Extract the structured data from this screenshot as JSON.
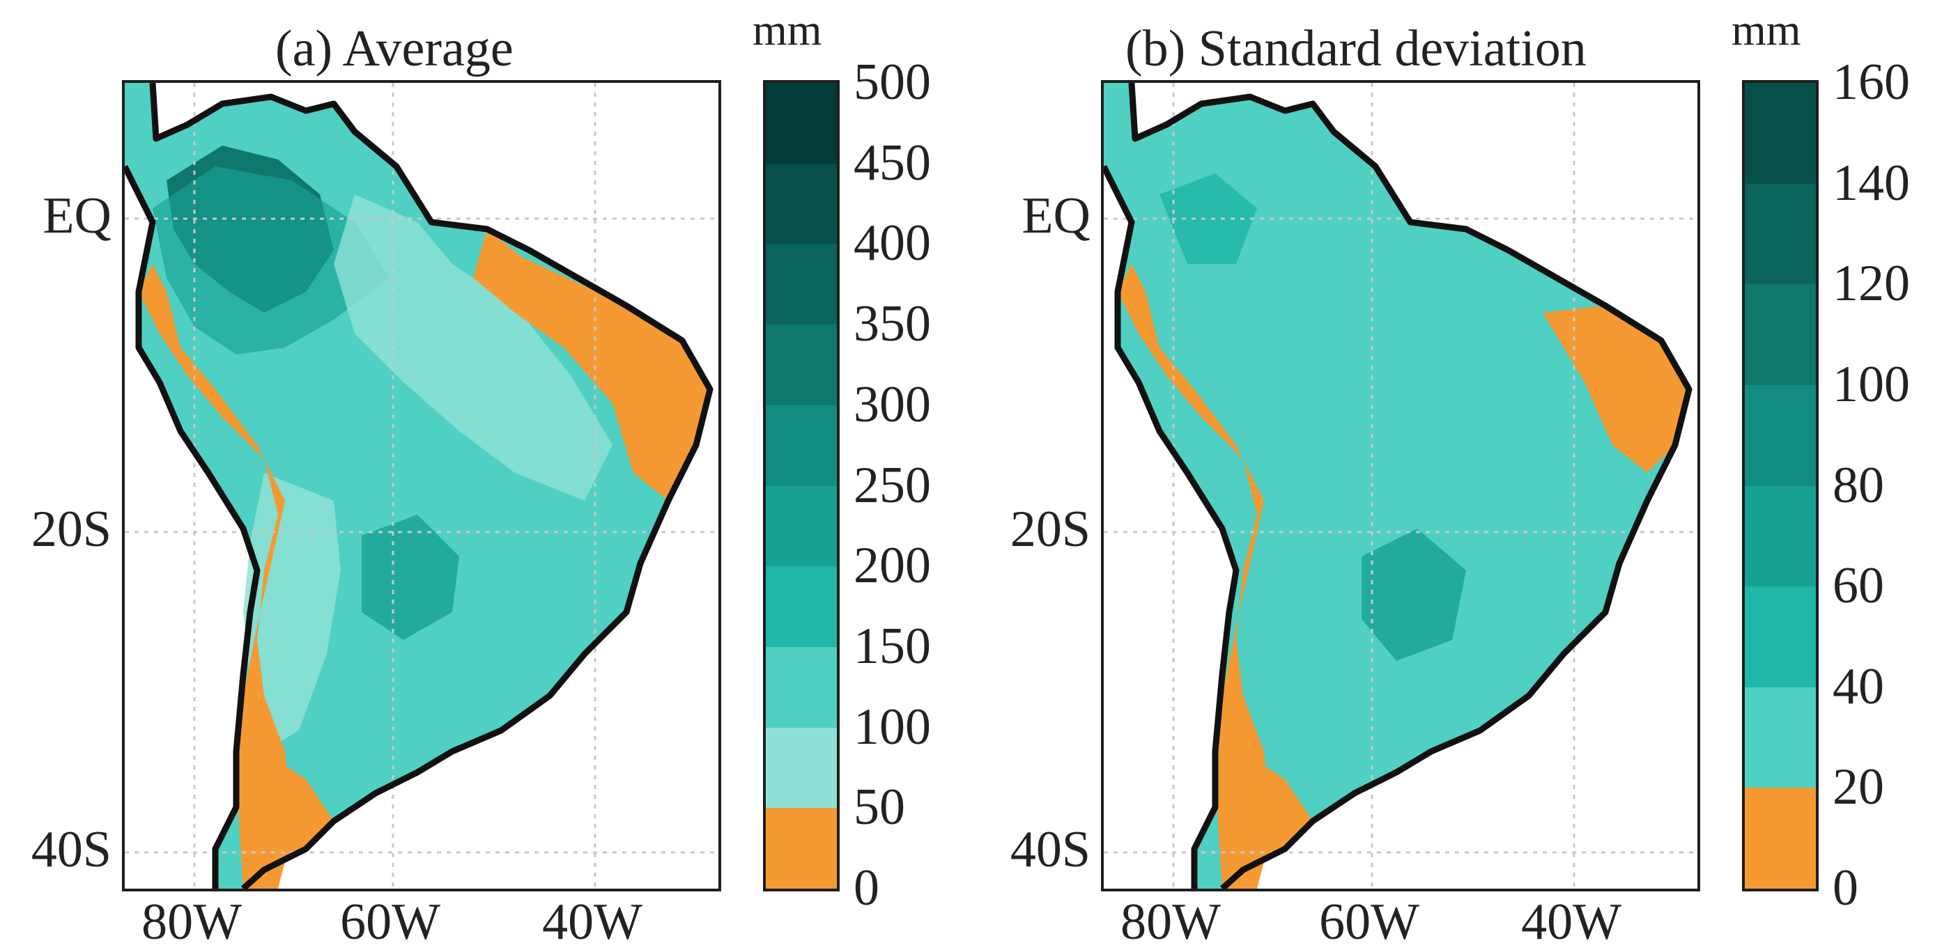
{
  "colors": {
    "dry": "#f59a32",
    "teal_levels": [
      "#f59a32",
      "#8ee2d5",
      "#4fd0c2",
      "#1fb7a7",
      "#17a193",
      "#128c80",
      "#0f786d",
      "#0b645c",
      "#07504a",
      "#043b37",
      "#02302c"
    ],
    "teal_levels_sd": [
      "#f59a32",
      "#4fd0c2",
      "#1fb7a7",
      "#17a193",
      "#128c80",
      "#0f786d",
      "#0b645c",
      "#07504a",
      "#02302c"
    ],
    "coast": "#111111",
    "grid": "#c8c8c8"
  },
  "panels": [
    {
      "title": "(a) Average",
      "unit": "mm",
      "colorbar_ticks": [
        "500",
        "450",
        "400",
        "350",
        "300",
        "250",
        "200",
        "150",
        "100",
        "50",
        "0"
      ],
      "lat_labels": [
        "EQ",
        "20S",
        "40S"
      ],
      "lon_labels": [
        "80W",
        "60W",
        "40W"
      ]
    },
    {
      "title": "(b) Standard deviation",
      "unit": "mm",
      "colorbar_ticks": [
        "160",
        "140",
        "120",
        "100",
        "80",
        "60",
        "40",
        "20",
        "0"
      ],
      "lat_labels": [
        "EQ",
        "20S",
        "40S"
      ],
      "lon_labels": [
        "80W",
        "60W",
        "40W"
      ]
    }
  ]
}
